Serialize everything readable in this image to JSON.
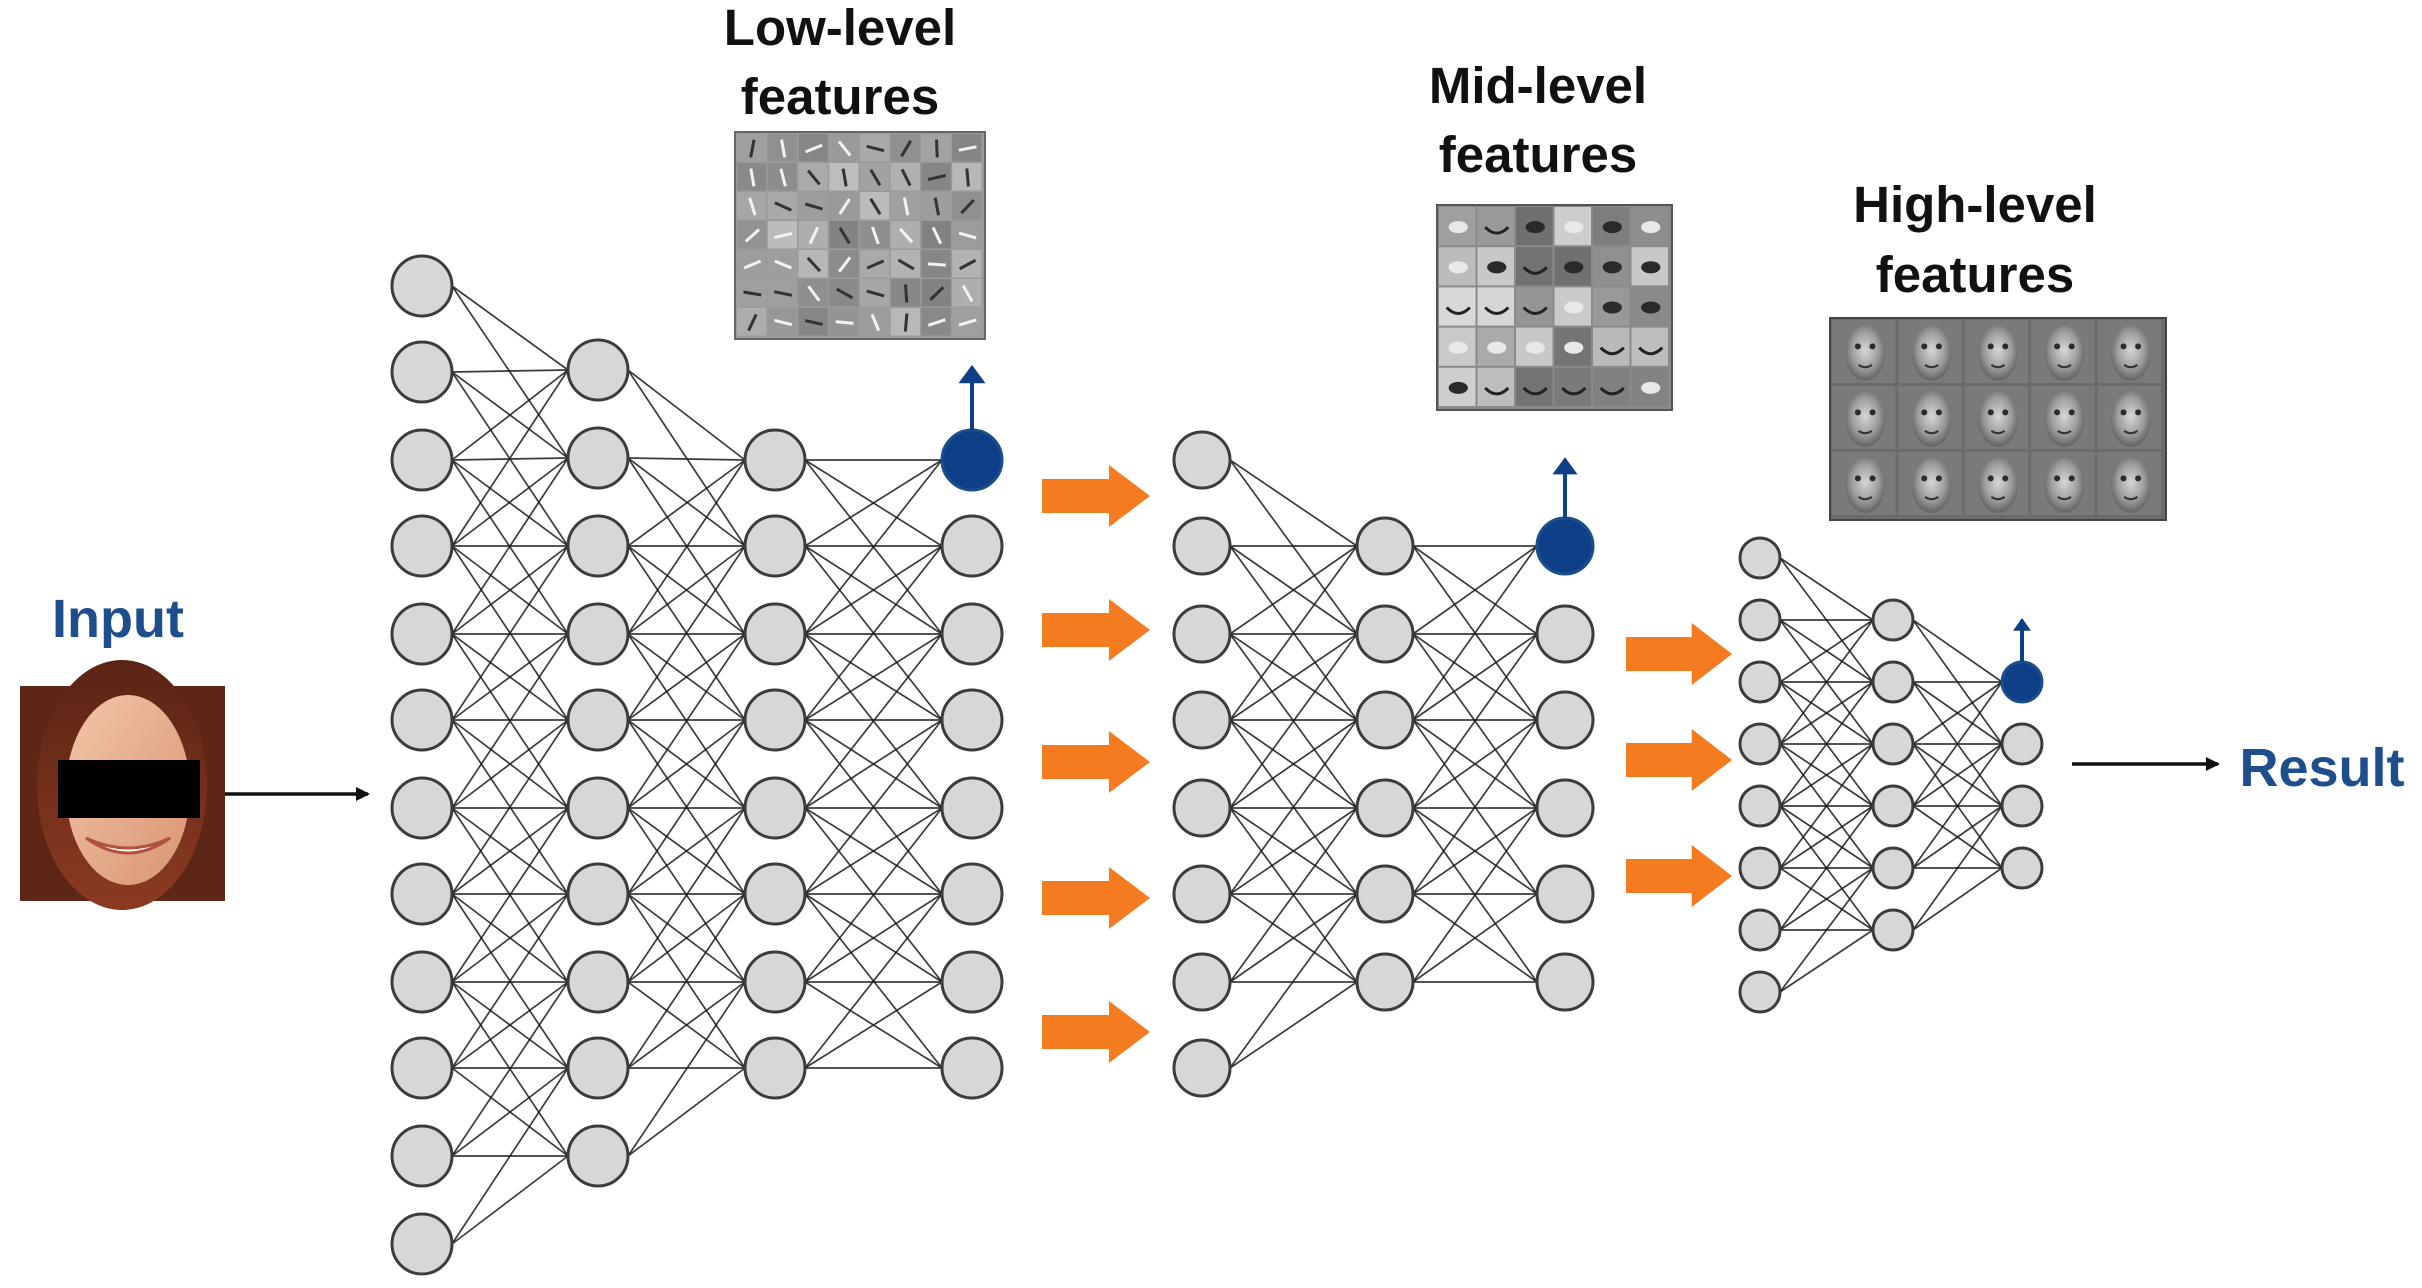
{
  "labels": {
    "input": "Input",
    "result": "Result",
    "low_level_line1": "Low-level",
    "low_level_line2": "features",
    "mid_level_line1": "Mid-level",
    "mid_level_line2": "features",
    "high_level_line1": "High-level",
    "high_level_line2": "features"
  },
  "colors": {
    "label_blue": "#1f4e8c",
    "active_node": "#0f3f86",
    "arrow_orange": "#f47b20",
    "node_fill": "#d7d7d7",
    "edge": "#1a1a1a"
  },
  "icons": {
    "input_image": "face-photo-with-eye-bar",
    "feature_maps": "feature-visualization-grid",
    "transition": "orange-right-arrow",
    "output": "black-right-arrow"
  }
}
